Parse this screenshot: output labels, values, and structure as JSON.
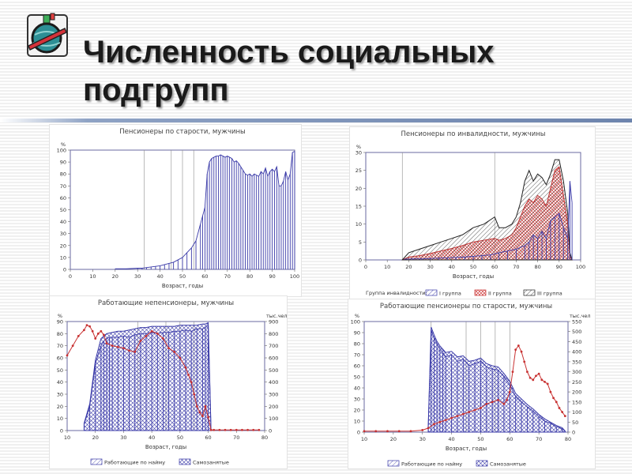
{
  "page": {
    "title_line1": "Численность социальных",
    "title_line2": "подгрупп",
    "logo_icon": "globe-ribbon-icon",
    "rule_color": "#7088b0"
  },
  "chart_data": [
    {
      "id": "c1",
      "type": "bar",
      "title": "Пенсионеры по старости, мужчины",
      "xlabel": "Возраст, годы",
      "ylabel_left": "%",
      "xlim": [
        0,
        100
      ],
      "ylim": [
        0,
        100
      ],
      "xticks": [
        0,
        10,
        20,
        30,
        40,
        50,
        60,
        70,
        80,
        90,
        100
      ],
      "yticks": [
        0,
        10,
        20,
        30,
        40,
        50,
        60,
        70,
        80,
        90,
        100
      ],
      "vlines": [
        33,
        45,
        50,
        55
      ],
      "grid": false,
      "series": [
        {
          "style": "bars",
          "x": [
            20,
            25,
            30,
            32,
            34,
            36,
            38,
            40,
            42,
            44,
            46,
            48,
            50,
            52,
            54,
            56,
            58,
            59,
            60,
            61,
            62,
            63,
            64,
            65,
            66,
            67,
            68,
            69,
            70,
            71,
            72,
            73,
            74,
            75,
            76,
            77,
            78,
            79,
            80,
            81,
            82,
            83,
            84,
            85,
            86,
            87,
            88,
            89,
            90,
            91,
            92,
            93,
            94,
            95,
            96,
            97,
            98,
            99,
            100
          ],
          "values": [
            0.5,
            0.5,
            1,
            1,
            1.5,
            2,
            2.5,
            3,
            4,
            5,
            6,
            8,
            10,
            14,
            18,
            24,
            38,
            45,
            52,
            80,
            90,
            93,
            94,
            95,
            95,
            96,
            95,
            94,
            95,
            94,
            93,
            90,
            91,
            89,
            86,
            83,
            80,
            79,
            80,
            78,
            80,
            79,
            78,
            82,
            80,
            85,
            78,
            82,
            84,
            82,
            86,
            70,
            70,
            74,
            82,
            75,
            80,
            98,
            99
          ]
        }
      ]
    },
    {
      "id": "c2",
      "type": "area",
      "title": "Пенсионеры по инвалидности, мужчины",
      "xlabel": "Возраст, годы",
      "ylabel_left": "%",
      "xlim": [
        0,
        100
      ],
      "ylim": [
        0,
        30
      ],
      "xticks": [
        0,
        10,
        20,
        30,
        40,
        50,
        60,
        70,
        80,
        90,
        100
      ],
      "yticks": [
        0,
        5,
        10,
        15,
        20,
        25,
        30
      ],
      "vlines": [
        17,
        60
      ],
      "legend_title": "Группа инвалидности:",
      "legend_position": "bottom",
      "series": [
        {
          "name": "I группа",
          "style": "bars",
          "x": [
            18,
            22,
            26,
            30,
            34,
            38,
            42,
            46,
            50,
            54,
            58,
            62,
            66,
            70,
            74,
            76,
            78,
            80,
            82,
            84,
            86,
            88,
            90,
            92,
            94,
            95,
            96
          ],
          "values": [
            0.2,
            0.3,
            0.3,
            0.4,
            0.5,
            0.6,
            0.7,
            0.8,
            1,
            1.2,
            1.4,
            2,
            2.5,
            3,
            4,
            5,
            7,
            6,
            8,
            6,
            11,
            12,
            13,
            9,
            6,
            22,
            16
          ]
        },
        {
          "name": "II группа",
          "style": "fill",
          "x": [
            17,
            20,
            25,
            30,
            35,
            40,
            45,
            50,
            55,
            60,
            62,
            65,
            68,
            70,
            72,
            74,
            76,
            78,
            80,
            82,
            84,
            86,
            88,
            90,
            92,
            94,
            95,
            96
          ],
          "values": [
            0,
            0.8,
            1.2,
            1.8,
            2.5,
            3.2,
            4,
            5,
            5.5,
            6,
            5.5,
            6,
            7,
            9,
            12,
            15,
            17,
            16,
            18,
            17,
            15,
            20,
            25,
            26,
            18,
            10,
            1,
            0
          ]
        },
        {
          "name": "III группа",
          "style": "fill",
          "x": [
            17,
            20,
            25,
            30,
            35,
            40,
            45,
            50,
            55,
            60,
            62,
            65,
            68,
            70,
            72,
            74,
            76,
            78,
            80,
            82,
            84,
            86,
            88,
            90,
            92,
            94,
            95,
            96
          ],
          "values": [
            0,
            2,
            3,
            4,
            5,
            6,
            7,
            9,
            10,
            12,
            9,
            9,
            10,
            12,
            16,
            22,
            25,
            22,
            24,
            23,
            21,
            24,
            28,
            28,
            22,
            13,
            2,
            0
          ]
        }
      ]
    },
    {
      "id": "c3",
      "type": "bar",
      "title": "Работающие непенсионеры, мужчины",
      "xlabel": "Возраст, годы",
      "ylabel_left": "%",
      "ylabel_right": "тыс.чел",
      "xlim": [
        10,
        80
      ],
      "ylim": [
        0,
        90
      ],
      "ylim_right": [
        0,
        900
      ],
      "xticks": [
        10,
        20,
        30,
        40,
        50,
        60,
        70,
        80
      ],
      "yticks": [
        0,
        10,
        20,
        30,
        40,
        50,
        60,
        70,
        80,
        90
      ],
      "yticks_right": [
        0,
        100,
        200,
        300,
        400,
        500,
        600,
        700,
        800,
        900
      ],
      "vlines": [
        35,
        45,
        50,
        55
      ],
      "legend_position": "bottom",
      "series": [
        {
          "name": "Работающие по найму",
          "style": "bars",
          "axis": "left",
          "x": [
            16,
            18,
            20,
            22,
            23,
            24,
            25,
            26,
            28,
            30,
            32,
            34,
            36,
            38,
            40,
            42,
            44,
            46,
            48,
            50,
            52,
            54,
            56,
            58,
            59,
            60,
            61
          ],
          "values": [
            5,
            20,
            55,
            70,
            74,
            76,
            77,
            77,
            77,
            78,
            77,
            79,
            80,
            80,
            81,
            80,
            81,
            81,
            82,
            82,
            83,
            82,
            84,
            84,
            85,
            87,
            0
          ]
        },
        {
          "name": "Самозанятые",
          "style": "fill",
          "axis": "left",
          "x": [
            16,
            18,
            20,
            22,
            24,
            26,
            28,
            30,
            32,
            34,
            36,
            38,
            40,
            42,
            44,
            46,
            48,
            50,
            52,
            54,
            56,
            58,
            59,
            60,
            61
          ],
          "values": [
            6,
            22,
            58,
            76,
            80,
            81,
            82,
            82,
            83,
            84,
            85,
            85,
            86,
            86,
            86,
            86,
            86,
            87,
            87,
            87,
            87,
            88,
            88,
            89,
            0
          ]
        },
        {
          "name": "",
          "style": "line-markers",
          "axis": "right",
          "x": [
            10,
            12,
            14,
            16,
            17,
            18,
            19,
            20,
            21,
            22,
            23,
            24,
            26,
            28,
            30,
            32,
            34,
            36,
            38,
            40,
            42,
            44,
            46,
            48,
            50,
            52,
            53,
            54,
            55,
            56,
            57,
            58,
            59,
            60,
            61,
            62,
            64,
            66,
            68,
            70,
            72,
            74,
            76,
            78
          ],
          "values": [
            620,
            700,
            780,
            830,
            870,
            860,
            820,
            760,
            800,
            820,
            790,
            720,
            700,
            690,
            680,
            660,
            650,
            740,
            780,
            820,
            800,
            760,
            680,
            650,
            600,
            520,
            460,
            400,
            300,
            200,
            150,
            120,
            200,
            110,
            5,
            5,
            5,
            5,
            5,
            5,
            5,
            5,
            5,
            5
          ]
        }
      ]
    },
    {
      "id": "c4",
      "type": "bar",
      "title": "Работающие пенсионеры по старости, мужчины",
      "xlabel": "Возраст, годы",
      "ylabel_left": "%",
      "ylabel_right": "тыс.чел",
      "xlim": [
        10,
        80
      ],
      "ylim": [
        0,
        100
      ],
      "ylim_right": [
        0,
        550
      ],
      "xticks": [
        10,
        20,
        30,
        40,
        50,
        60,
        70,
        80
      ],
      "yticks": [
        0,
        10,
        20,
        30,
        40,
        50,
        60,
        70,
        80,
        90,
        100
      ],
      "yticks_right": [
        0,
        50,
        100,
        150,
        200,
        250,
        300,
        350,
        400,
        450,
        500,
        550
      ],
      "vlines": [
        33,
        45,
        50,
        55,
        60
      ],
      "legend_position": "bottom",
      "series": [
        {
          "name": "Работающие по найму",
          "style": "bars",
          "axis": "left",
          "x": [
            32,
            33,
            34,
            35,
            36,
            37,
            38,
            40,
            42,
            44,
            46,
            48,
            50,
            52,
            54,
            56,
            58,
            60,
            62,
            64,
            66,
            68,
            70,
            72,
            74,
            76,
            78,
            79
          ],
          "values": [
            5,
            92,
            85,
            80,
            75,
            72,
            68,
            70,
            64,
            66,
            60,
            62,
            64,
            59,
            57,
            56,
            50,
            43,
            32,
            27,
            23,
            19,
            14,
            10,
            8,
            5,
            3,
            1
          ]
        },
        {
          "name": "Самозанятые",
          "style": "fill",
          "axis": "left",
          "x": [
            32,
            33,
            34,
            35,
            36,
            37,
            38,
            40,
            42,
            44,
            46,
            48,
            50,
            52,
            54,
            56,
            58,
            60,
            62,
            64,
            66,
            68,
            70,
            72,
            74,
            76,
            78,
            79
          ],
          "values": [
            6,
            95,
            88,
            82,
            78,
            75,
            72,
            73,
            68,
            69,
            64,
            65,
            67,
            62,
            60,
            59,
            53,
            46,
            35,
            30,
            25,
            21,
            16,
            12,
            9,
            6,
            4,
            1
          ]
        },
        {
          "name": "",
          "style": "line-markers",
          "axis": "right",
          "x": [
            10,
            14,
            18,
            22,
            26,
            30,
            32,
            34,
            36,
            38,
            40,
            42,
            44,
            46,
            48,
            50,
            52,
            54,
            56,
            58,
            59,
            60,
            61,
            62,
            63,
            64,
            65,
            66,
            67,
            68,
            69,
            70,
            71,
            72,
            73,
            74,
            75,
            76,
            77,
            78,
            79
          ],
          "values": [
            5,
            5,
            5,
            5,
            5,
            10,
            20,
            40,
            50,
            60,
            70,
            80,
            90,
            100,
            110,
            120,
            140,
            150,
            160,
            140,
            160,
            200,
            300,
            410,
            430,
            400,
            350,
            300,
            270,
            260,
            280,
            290,
            260,
            250,
            240,
            200,
            170,
            150,
            120,
            100,
            80
          ]
        }
      ]
    }
  ]
}
